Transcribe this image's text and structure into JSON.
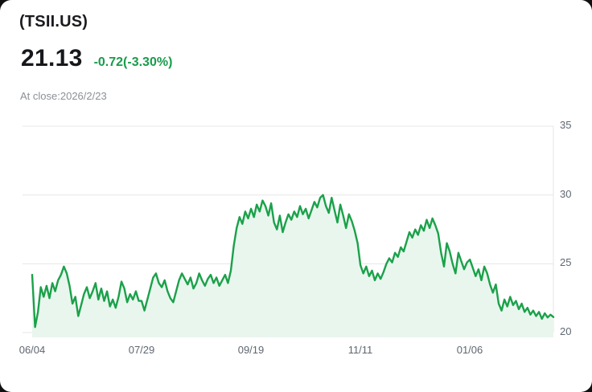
{
  "header": {
    "symbol": "(TSII.US)",
    "price": "21.13",
    "change": "-0.72(-3.30%)",
    "as_of": "At close:2026/2/23"
  },
  "colors": {
    "line": "#1BA14A",
    "area_fill": "#E9F6EE",
    "change_text": "#189C4B",
    "grid": "#E6E6E6",
    "axis_text": "#5F6771"
  },
  "chart_data": {
    "type": "area",
    "title": "TSII.US daily closing price",
    "xlabel": "",
    "ylabel": "",
    "legend": false,
    "grid": "horizontal",
    "y_axis_side": "right",
    "x_tick_labels": [
      "06/04",
      "07/29",
      "09/19",
      "11/11",
      "01/06"
    ],
    "x_tick_indices": [
      0,
      38,
      76,
      114,
      152
    ],
    "y_ticks": [
      20,
      25,
      30,
      35
    ],
    "ylim": [
      19.65,
      36.0
    ],
    "values": [
      24.2,
      20.4,
      21.5,
      23.3,
      22.6,
      23.4,
      22.5,
      23.6,
      23.0,
      23.8,
      24.2,
      24.8,
      24.3,
      23.4,
      22.1,
      22.6,
      21.2,
      22.0,
      22.8,
      23.3,
      22.5,
      23.0,
      23.6,
      22.4,
      23.2,
      22.3,
      23.0,
      21.9,
      22.4,
      21.8,
      22.6,
      23.7,
      23.2,
      22.2,
      22.8,
      22.4,
      23.0,
      22.3,
      22.3,
      21.6,
      22.4,
      23.2,
      24.0,
      24.3,
      23.6,
      23.3,
      23.8,
      23.0,
      22.5,
      22.2,
      23.0,
      23.8,
      24.3,
      23.9,
      23.5,
      24.0,
      23.2,
      23.6,
      24.3,
      23.8,
      23.4,
      23.9,
      24.2,
      23.6,
      24.0,
      23.4,
      23.8,
      24.2,
      23.6,
      24.5,
      26.3,
      27.6,
      28.4,
      27.9,
      28.8,
      28.3,
      29.0,
      28.4,
      29.3,
      28.8,
      29.6,
      29.2,
      28.5,
      29.4,
      28.0,
      27.5,
      28.5,
      27.3,
      28.0,
      28.6,
      28.2,
      28.8,
      28.4,
      29.2,
      28.6,
      29.0,
      28.3,
      28.9,
      29.5,
      29.1,
      29.8,
      30.0,
      29.2,
      28.7,
      29.8,
      28.9,
      28.0,
      29.3,
      28.5,
      27.6,
      28.6,
      28.1,
      27.4,
      26.5,
      24.9,
      24.3,
      24.8,
      24.1,
      24.5,
      23.8,
      24.3,
      23.9,
      24.4,
      25.0,
      25.4,
      25.1,
      25.8,
      25.5,
      26.2,
      25.9,
      26.6,
      27.3,
      26.9,
      27.5,
      27.1,
      27.8,
      27.4,
      28.2,
      27.6,
      28.3,
      27.8,
      27.2,
      25.8,
      24.8,
      26.5,
      25.9,
      25.0,
      24.3,
      25.8,
      25.2,
      24.6,
      25.1,
      25.3,
      24.7,
      24.1,
      24.6,
      23.8,
      24.8,
      24.3,
      23.5,
      22.9,
      23.5,
      22.1,
      21.6,
      22.4,
      21.9,
      22.6,
      22.0,
      22.3,
      21.7,
      22.1,
      21.5,
      21.8,
      21.3,
      21.6,
      21.2,
      21.5,
      21.0,
      21.4,
      21.1,
      21.3,
      21.13
    ]
  }
}
